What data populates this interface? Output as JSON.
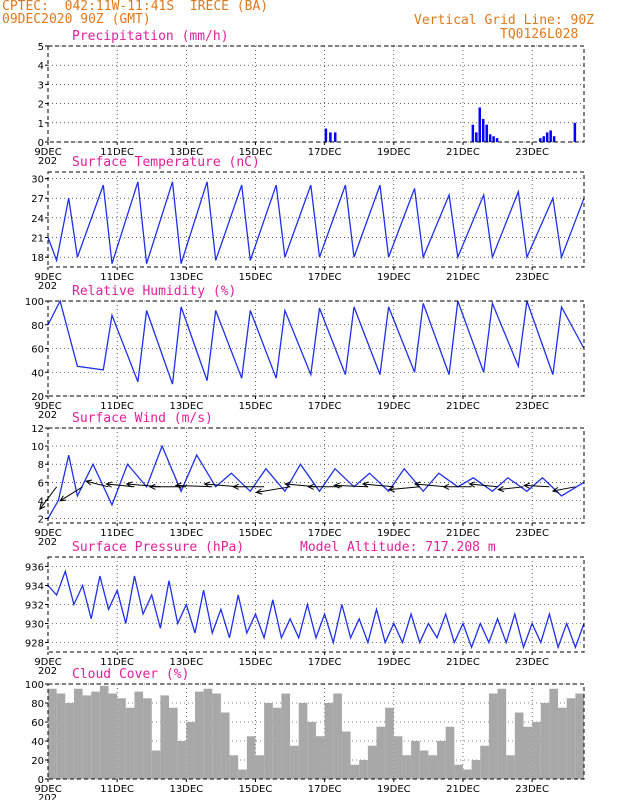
{
  "header": {
    "line1": "CPTEC:  042:11W-11:41S  IRECE (BA)",
    "line2": "09DEC2020 90Z (GMT)",
    "vgrid": "Vertical Grid Line: 90Z",
    "code": "TQ0126L028"
  },
  "x_tick_labels": [
    "9DEC",
    "11DEC",
    "13DEC",
    "15DEC",
    "17DEC",
    "19DEC",
    "21DEC",
    "23DEC"
  ],
  "x_sub_label": "202",
  "chart_data": [
    {
      "id": "precip",
      "type": "bar",
      "title": "Precipitation (mm/h)",
      "color": "#0000ff",
      "xlim": [
        0,
        15.5
      ],
      "ylim": [
        0,
        5
      ],
      "yticks": [
        0,
        1,
        2,
        3,
        4,
        5
      ],
      "x": [
        8.0,
        8.13,
        8.27,
        12.25,
        12.35,
        12.45,
        12.55,
        12.65,
        12.75,
        12.85,
        12.95,
        14.2,
        14.3,
        14.4,
        14.5,
        14.6,
        15.2
      ],
      "values": [
        0.7,
        0.5,
        0.5,
        0.9,
        0.5,
        1.8,
        1.2,
        0.9,
        0.4,
        0.3,
        0.2,
        0.2,
        0.3,
        0.5,
        0.6,
        0.3,
        1.0
      ]
    },
    {
      "id": "temperature",
      "type": "line",
      "title": "Surface Temperature (nC)",
      "color": "#2030e8",
      "xlim": [
        0,
        15.5
      ],
      "ylim": [
        16.5,
        31
      ],
      "yticks": [
        18,
        21,
        24,
        27,
        30
      ],
      "x": [
        0,
        0.25,
        0.6,
        0.85,
        1.6,
        1.85,
        2.6,
        2.85,
        3.6,
        3.85,
        4.6,
        4.85,
        5.6,
        5.85,
        6.6,
        6.85,
        7.6,
        7.85,
        8.6,
        8.85,
        9.6,
        9.85,
        10.6,
        10.85,
        11.6,
        11.85,
        12.6,
        12.85,
        13.6,
        13.85,
        14.6,
        14.85,
        15.5
      ],
      "values": [
        21,
        17.5,
        27,
        18,
        29,
        17,
        29.5,
        17,
        29.5,
        17,
        29.5,
        17.5,
        29,
        17.5,
        29,
        18,
        29,
        18,
        29,
        18,
        29,
        18,
        28.5,
        18,
        27.5,
        18,
        27.5,
        18,
        28,
        18,
        27,
        18,
        27
      ]
    },
    {
      "id": "humidity",
      "type": "line",
      "title": "Relative Humidity (%)",
      "color": "#2030e8",
      "xlim": [
        0,
        15.5
      ],
      "ylim": [
        20,
        100
      ],
      "yticks": [
        20,
        40,
        60,
        80,
        100
      ],
      "x": [
        0,
        0.35,
        0.85,
        1.6,
        1.85,
        2.6,
        2.85,
        3.6,
        3.85,
        4.6,
        4.85,
        5.6,
        5.85,
        6.6,
        6.85,
        7.6,
        7.85,
        8.6,
        8.85,
        9.6,
        9.85,
        10.6,
        10.85,
        11.6,
        11.85,
        12.6,
        12.85,
        13.6,
        13.85,
        14.6,
        14.85,
        15.5
      ],
      "values": [
        80,
        100,
        45,
        42,
        88,
        32,
        92,
        30,
        95,
        33,
        92,
        35,
        92,
        35,
        92,
        38,
        94,
        38,
        95,
        38,
        95,
        40,
        98,
        38,
        100,
        40,
        98,
        45,
        100,
        38,
        95,
        60
      ]
    },
    {
      "id": "wind",
      "type": "line",
      "title": "Surface Wind (m/s)",
      "color": "#2030e8",
      "xlim": [
        0,
        15.5
      ],
      "ylim": [
        1.5,
        12
      ],
      "yticks": [
        2,
        4,
        6,
        8,
        10,
        12
      ],
      "x": [
        0,
        0.3,
        0.6,
        0.85,
        1.3,
        1.85,
        2.3,
        2.85,
        3.3,
        3.85,
        4.3,
        4.85,
        5.3,
        5.85,
        6.3,
        6.85,
        7.3,
        7.85,
        8.3,
        8.85,
        9.3,
        9.85,
        10.3,
        10.85,
        11.3,
        11.85,
        12.3,
        12.85,
        13.3,
        13.85,
        14.3,
        14.85,
        15.5
      ],
      "values": [
        2,
        4,
        9,
        4.5,
        8,
        3.5,
        8,
        5.5,
        10,
        5,
        9,
        5.5,
        7,
        5,
        7.5,
        5,
        8,
        5,
        7.5,
        5.5,
        7,
        5,
        7.5,
        5,
        7,
        5.5,
        6.5,
        5,
        6.5,
        5,
        6.5,
        4.5,
        6
      ]
    },
    {
      "id": "pressure",
      "type": "line",
      "title": "Surface Pressure (hPa)",
      "subtitle": "Model Altitude: 717.208 m",
      "color": "#2030e8",
      "xlim": [
        0,
        15.5
      ],
      "ylim": [
        927,
        937
      ],
      "yticks": [
        928,
        930,
        932,
        934,
        936
      ],
      "x": [
        0,
        0.25,
        0.5,
        0.75,
        1.0,
        1.25,
        1.5,
        1.75,
        2.0,
        2.25,
        2.5,
        2.75,
        3.0,
        3.25,
        3.5,
        3.75,
        4.0,
        4.25,
        4.5,
        4.75,
        5.0,
        5.25,
        5.5,
        5.75,
        6.0,
        6.25,
        6.5,
        6.75,
        7.0,
        7.25,
        7.5,
        7.75,
        8.0,
        8.25,
        8.5,
        8.75,
        9.0,
        9.25,
        9.5,
        9.75,
        10.0,
        10.25,
        10.5,
        10.75,
        11.0,
        11.25,
        11.5,
        11.75,
        12.0,
        12.25,
        12.5,
        12.75,
        13.0,
        13.25,
        13.5,
        13.75,
        14.0,
        14.25,
        14.5,
        14.75,
        15.0,
        15.25,
        15.5
      ],
      "values": [
        934,
        933,
        935.5,
        932,
        934,
        930.5,
        935,
        931.5,
        933.5,
        930,
        935,
        931,
        933,
        929.5,
        934.5,
        930,
        932,
        929,
        933.5,
        929,
        931.5,
        928.5,
        933,
        929,
        931,
        928.5,
        932.5,
        928.5,
        930.5,
        928.5,
        932,
        928.5,
        931,
        928,
        932,
        928.5,
        930.5,
        928,
        931.5,
        928,
        930,
        928,
        931,
        928,
        930,
        928.5,
        931,
        928,
        930,
        927.5,
        930,
        928,
        930.5,
        928,
        931,
        927.5,
        930,
        928,
        931,
        927.5,
        930,
        927.5,
        930
      ]
    },
    {
      "id": "cloud",
      "type": "bar",
      "title": "Cloud Cover (%)",
      "color": "#a8a8a8",
      "xlim": [
        0,
        15.5
      ],
      "ylim": [
        0,
        100
      ],
      "yticks": [
        0,
        20,
        40,
        60,
        80,
        100
      ],
      "x": [
        0,
        0.25,
        0.5,
        0.75,
        1.0,
        1.25,
        1.5,
        1.75,
        2.0,
        2.25,
        2.5,
        2.75,
        3.0,
        3.25,
        3.5,
        3.75,
        4.0,
        4.25,
        4.5,
        4.75,
        5.0,
        5.25,
        5.5,
        5.75,
        6.0,
        6.25,
        6.5,
        6.75,
        7.0,
        7.25,
        7.5,
        7.75,
        8.0,
        8.25,
        8.5,
        8.75,
        9.0,
        9.25,
        9.5,
        9.75,
        10.0,
        10.25,
        10.5,
        10.75,
        11.0,
        11.25,
        11.5,
        11.75,
        12.0,
        12.25,
        12.5,
        12.75,
        13.0,
        13.25,
        13.5,
        13.75,
        14.0,
        14.25,
        14.5,
        14.75,
        15.0,
        15.25
      ],
      "values": [
        95,
        90,
        80,
        95,
        88,
        92,
        98,
        90,
        85,
        75,
        92,
        85,
        30,
        88,
        75,
        40,
        60,
        92,
        95,
        90,
        70,
        25,
        10,
        45,
        25,
        80,
        75,
        90,
        35,
        80,
        60,
        45,
        80,
        90,
        50,
        15,
        20,
        35,
        55,
        75,
        45,
        25,
        40,
        30,
        25,
        40,
        55,
        15,
        10,
        20,
        35,
        90,
        95,
        25,
        70,
        55,
        60,
        80,
        95,
        75,
        85,
        90
      ]
    }
  ],
  "wind_vectors": {
    "x": [
      0.25,
      1.0,
      1.75,
      2.5,
      3.25,
      4.0,
      4.75,
      5.5,
      6.25,
      7.0,
      7.75,
      8.5,
      9.25,
      10.0,
      10.75,
      11.5,
      12.25,
      13.0,
      13.75,
      14.5,
      15.25
    ],
    "u": [
      -0.6,
      -0.8,
      -0.8,
      -1.0,
      -1.2,
      -1.3,
      -1.3,
      -1.2,
      -1.1,
      -1.2,
      -1.1,
      -1.2,
      -1.2,
      -1.1,
      -1.1,
      -1.1,
      -1.0,
      -1.0,
      -0.9,
      -0.9,
      -0.8
    ],
    "v": [
      -0.8,
      -0.5,
      0.2,
      0.1,
      0.1,
      0.0,
      0.05,
      0.1,
      0.0,
      -0.2,
      0.1,
      0.0,
      0.05,
      0.1,
      -0.1,
      0.1,
      0.0,
      0.1,
      -0.1,
      0.05,
      -0.15
    ]
  }
}
